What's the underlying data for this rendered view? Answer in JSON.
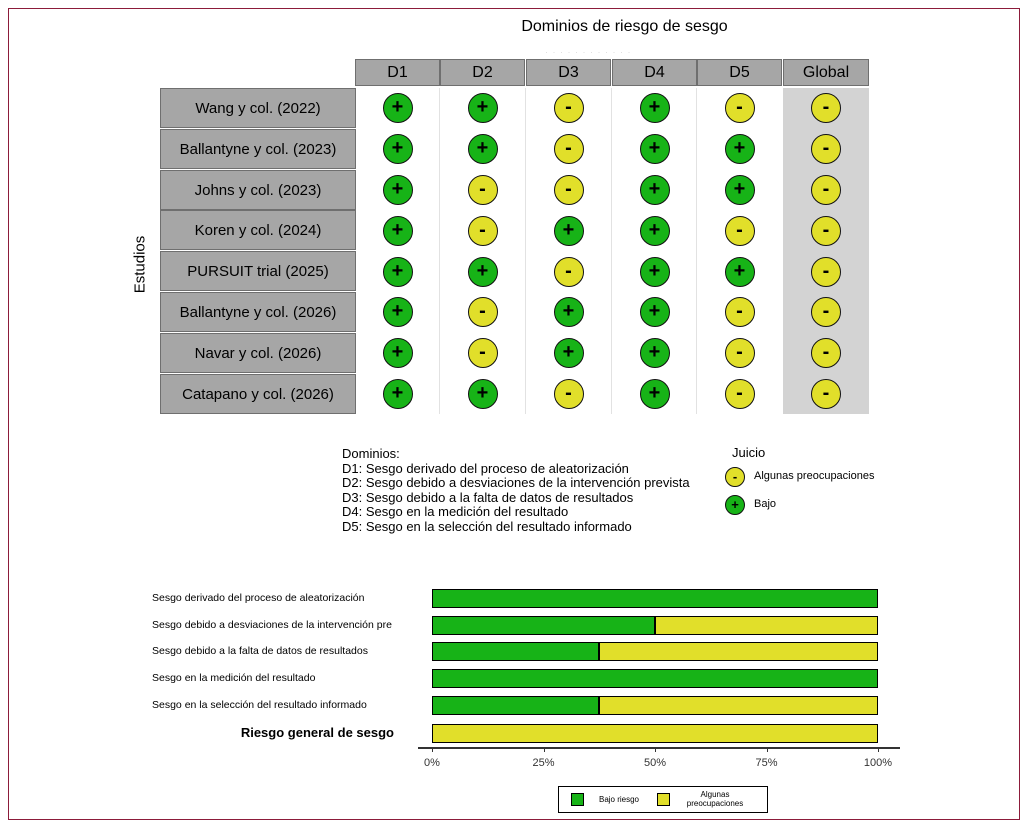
{
  "chart_data": [
    {
      "type": "table",
      "title": "Dominios de riesgo de sesgo",
      "ylabel": "Estudios",
      "columns": [
        "D1",
        "D2",
        "D3",
        "D4",
        "D5",
        "Global"
      ],
      "studies": [
        {
          "name": "Wang y col. (2022)",
          "judgements": [
            "low",
            "low",
            "some",
            "low",
            "some",
            "some"
          ]
        },
        {
          "name": "Ballantyne y col. (2023)",
          "judgements": [
            "low",
            "low",
            "some",
            "low",
            "low",
            "some"
          ]
        },
        {
          "name": "Johns y col. (2023)",
          "judgements": [
            "low",
            "some",
            "some",
            "low",
            "low",
            "some"
          ]
        },
        {
          "name": "Koren y col. (2024)",
          "judgements": [
            "low",
            "some",
            "low",
            "low",
            "some",
            "some"
          ]
        },
        {
          "name": "PURSUIT trial (2025)",
          "judgements": [
            "low",
            "low",
            "some",
            "low",
            "low",
            "some"
          ]
        },
        {
          "name": "Ballantyne y col. (2026)",
          "judgements": [
            "low",
            "some",
            "low",
            "low",
            "some",
            "some"
          ]
        },
        {
          "name": "Navar y col. (2026)",
          "judgements": [
            "low",
            "some",
            "low",
            "low",
            "some",
            "some"
          ]
        },
        {
          "name": "Catapano y col. (2026)",
          "judgements": [
            "low",
            "low",
            "some",
            "low",
            "some",
            "some"
          ]
        }
      ],
      "symbols": {
        "low": "+",
        "some": "-"
      },
      "domains_title": "Dominios:",
      "domains": [
        "D1: Sesgo derivado del proceso de aleatorización",
        "D2: Sesgo debido a desviaciones de la intervención prevista",
        "D3: Sesgo debido a la falta de datos de resultados",
        "D4: Sesgo en la medición del resultado",
        "D5: Sesgo en la selección del resultado informado"
      ],
      "judgement_legend_title": "Juicio",
      "judgement_legend": [
        {
          "key": "some",
          "label": "Algunas preocupaciones"
        },
        {
          "key": "low",
          "label": "Bajo"
        }
      ]
    },
    {
      "type": "bar",
      "orientation": "horizontal",
      "stacked": true,
      "categories": [
        "Sesgo derivado del proceso de aleatorización",
        "Sesgo debido a desviaciones de la intervención pre",
        "Sesgo debido a la falta de datos de resultados",
        "Sesgo en la medición del resultado",
        "Sesgo en la selección del resultado informado",
        "Riesgo general de sesgo"
      ],
      "series": [
        {
          "name": "Bajo riesgo",
          "key": "low",
          "values": [
            100,
            50,
            37.5,
            100,
            37.5,
            0
          ]
        },
        {
          "name": "Algunas preocupaciones",
          "key": "some",
          "values": [
            0,
            50,
            62.5,
            0,
            62.5,
            100
          ]
        }
      ],
      "xlim": [
        0,
        100
      ],
      "xticks": [
        "0%",
        "25%",
        "50%",
        "75%",
        "100%"
      ],
      "legend_labels": [
        "Bajo riesgo",
        "Algunas\npreocupaciones"
      ]
    }
  ],
  "colors": {
    "low": "#17b317",
    "some": "#e1df2a",
    "header": "#a6a6a6",
    "overall": "#d3d3d3",
    "frame": "#8c1b3a"
  }
}
